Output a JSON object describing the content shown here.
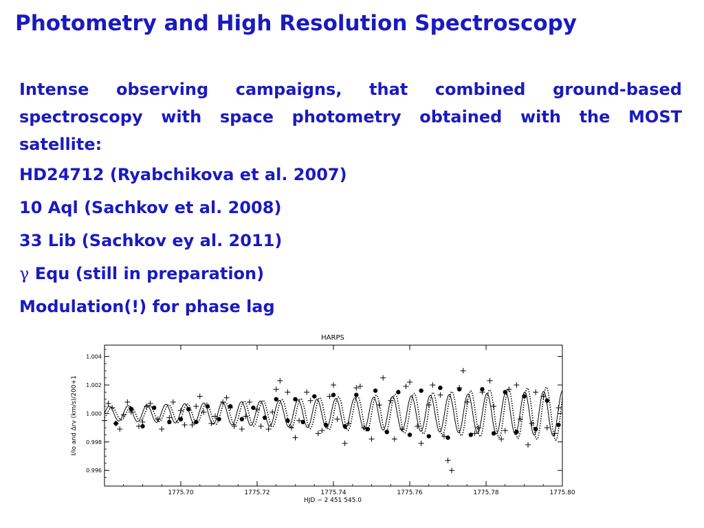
{
  "slide": {
    "title": "Photometry and High Resolution Spectroscopy",
    "intro": "Intense observing campaigns, that combined ground-based spectroscopy with space photometry obtained with the MOST satellite:",
    "items": [
      "HD24712 (Ryabchikova et al. 2007)",
      "10 Aql (Sachkov et al. 2008)",
      "33 Lib (Sachkov ey al. 2011)"
    ],
    "gamma_symbol": "γ",
    "gamma_item": " Equ (still in preparation)",
    "last_line": "Modulation(!) for phase lag"
  },
  "colors": {
    "text": "#1a1ac0",
    "plot": "#000000"
  },
  "chart_data": {
    "type": "scatter",
    "title": "HARPS",
    "xlabel": "HJD − 2 451 545.0",
    "ylabel": "I/Io   and   Δrv (km/s)/200+1",
    "xlim": [
      1775.68,
      1775.8
    ],
    "ylim": [
      0.9949,
      1.0048
    ],
    "xticks": [
      1775.7,
      1775.72,
      1775.74,
      1775.76,
      1775.78,
      1775.8
    ],
    "xtick_labels": [
      "1775.70",
      "1775.72",
      "1775.74",
      "1775.76",
      "1775.78",
      "1775.80"
    ],
    "yticks": [
      0.996,
      0.998,
      1.0,
      1.002,
      1.004
    ],
    "ytick_labels": [
      "0.996",
      "0.998",
      "1.000",
      "1.002",
      "1.004"
    ],
    "grid": false,
    "series": [
      {
        "marker": "plus",
        "values": [
          [
            1775.68,
            0.9995
          ],
          [
            1775.681,
            1.0007
          ],
          [
            1775.682,
            1.0004
          ],
          [
            1775.683,
            0.9993
          ],
          [
            1775.684,
            0.9989
          ],
          [
            1775.685,
            0.9999
          ],
          [
            1775.686,
            1.0008
          ],
          [
            1775.687,
            1.0001
          ],
          [
            1775.689,
            0.9991
          ],
          [
            1775.69,
            0.9994
          ],
          [
            1775.691,
            1.0005
          ],
          [
            1775.692,
            1.0007
          ],
          [
            1775.694,
            0.9996
          ],
          [
            1775.695,
            0.9989
          ],
          [
            1775.697,
            0.9997
          ],
          [
            1775.698,
            1.0008
          ],
          [
            1775.7,
            1.0002
          ],
          [
            1775.701,
            0.9992
          ],
          [
            1775.703,
            0.9992
          ],
          [
            1775.704,
            1.0005
          ],
          [
            1775.705,
            1.0012
          ],
          [
            1775.706,
            1.0001
          ],
          [
            1775.708,
            0.9993
          ],
          [
            1775.709,
            0.9998
          ],
          [
            1775.711,
            1.0008
          ],
          [
            1775.712,
            1.0011
          ],
          [
            1775.713,
            1.0004
          ],
          [
            1775.714,
            0.9991
          ],
          [
            1775.716,
            0.9989
          ],
          [
            1775.717,
            0.9998
          ],
          [
            1775.718,
            1.0008
          ],
          [
            1775.72,
            1.0003
          ],
          [
            1775.721,
            0.9991
          ],
          [
            1775.723,
            0.9989
          ],
          [
            1775.724,
            1.0001
          ],
          [
            1775.725,
            1.0017
          ],
          [
            1775.726,
            1.0023
          ],
          [
            1775.728,
            1.0015
          ],
          [
            1775.729,
            0.999
          ],
          [
            1775.73,
            0.9983
          ],
          [
            1775.731,
            0.9995
          ],
          [
            1775.733,
            1.0015
          ],
          [
            1775.734,
            1.0009
          ],
          [
            1775.736,
            0.9986
          ],
          [
            1775.737,
            0.9988
          ],
          [
            1775.739,
            1.0012
          ],
          [
            1775.74,
            1.002
          ],
          [
            1775.741,
            0.9996
          ],
          [
            1775.743,
            0.9979
          ],
          [
            1775.744,
            0.9993
          ],
          [
            1775.746,
            1.0018
          ],
          [
            1775.747,
            1.0019
          ],
          [
            1775.748,
            0.999
          ],
          [
            1775.75,
            0.9982
          ],
          [
            1775.752,
            1.0006
          ],
          [
            1775.753,
            1.0025
          ],
          [
            1775.755,
            1.0009
          ],
          [
            1775.756,
            0.9982
          ],
          [
            1775.758,
            0.9989
          ],
          [
            1775.759,
            1.0019
          ],
          [
            1775.76,
            1.0022
          ],
          [
            1775.762,
            0.9991
          ],
          [
            1775.763,
            0.9979
          ],
          [
            1775.765,
            1.0006
          ],
          [
            1775.766,
            1.002
          ],
          [
            1775.768,
            1.0013
          ],
          [
            1775.769,
            0.9984
          ],
          [
            1775.77,
            0.9967
          ],
          [
            1775.771,
            0.996
          ],
          [
            1775.773,
            1.0018
          ],
          [
            1775.774,
            1.003
          ],
          [
            1775.775,
            1.0008
          ],
          [
            1775.777,
            0.9986
          ],
          [
            1775.778,
            0.999
          ],
          [
            1775.779,
            1.0015
          ],
          [
            1775.781,
            1.0023
          ],
          [
            1775.782,
            1.0005
          ],
          [
            1775.784,
            0.9982
          ],
          [
            1775.785,
            0.9988
          ],
          [
            1775.786,
            1.0017
          ],
          [
            1775.788,
            1.002
          ],
          [
            1775.789,
            0.9996
          ],
          [
            1775.791,
            0.9978
          ],
          [
            1775.792,
            0.9993
          ],
          [
            1775.793,
            1.0015
          ],
          [
            1775.795,
            1.0012
          ],
          [
            1775.796,
            0.999
          ],
          [
            1775.798,
            0.9986
          ],
          [
            1775.799,
            1.0004
          ]
        ]
      },
      {
        "marker": "filled-circle",
        "values": [
          [
            1775.683,
            0.9993
          ],
          [
            1775.687,
            1.0003
          ],
          [
            1775.69,
            0.9991
          ],
          [
            1775.693,
            1.0004
          ],
          [
            1775.697,
            0.9994
          ],
          [
            1775.7,
            0.9996
          ],
          [
            1775.702,
            1.0003
          ],
          [
            1775.704,
            0.9994
          ],
          [
            1775.707,
            1.0005
          ],
          [
            1775.71,
            0.9996
          ],
          [
            1775.713,
            1.0005
          ],
          [
            1775.716,
            0.9996
          ],
          [
            1775.719,
            1.0004
          ],
          [
            1775.722,
            0.9997
          ],
          [
            1775.725,
            1.001
          ],
          [
            1775.728,
            0.9995
          ],
          [
            1775.73,
            1.001
          ],
          [
            1775.732,
            0.9994
          ],
          [
            1775.735,
            1.0012
          ],
          [
            1775.738,
            0.9992
          ],
          [
            1775.74,
            1.0013
          ],
          [
            1775.743,
            0.9991
          ],
          [
            1775.746,
            1.0013
          ],
          [
            1775.749,
            0.9989
          ],
          [
            1775.751,
            1.0016
          ],
          [
            1775.754,
            0.9987
          ],
          [
            1775.757,
            1.0015
          ],
          [
            1775.76,
            0.9985
          ],
          [
            1775.763,
            1.0016
          ],
          [
            1775.765,
            0.9984
          ],
          [
            1775.768,
            1.0018
          ],
          [
            1775.77,
            0.9983
          ],
          [
            1775.773,
            1.0017
          ],
          [
            1775.776,
            0.9985
          ],
          [
            1775.779,
            1.0017
          ],
          [
            1775.782,
            0.9986
          ],
          [
            1775.785,
            1.0015
          ],
          [
            1775.788,
            0.9987
          ],
          [
            1775.79,
            1.0012
          ],
          [
            1775.793,
            0.9989
          ],
          [
            1775.796,
            1.0009
          ],
          [
            1775.799,
            0.9992
          ]
        ]
      },
      {
        "line": "solid",
        "mean": 1.0,
        "period": 0.00495,
        "phase": 0.0,
        "amplitude_start": 0.0005,
        "amplitude_end": 0.0016
      },
      {
        "line": "dotted",
        "mean": 1.0,
        "period": 0.00495,
        "phase": 0.0007,
        "amplitude_start": 0.0004,
        "amplitude_end": 0.0019
      }
    ]
  }
}
